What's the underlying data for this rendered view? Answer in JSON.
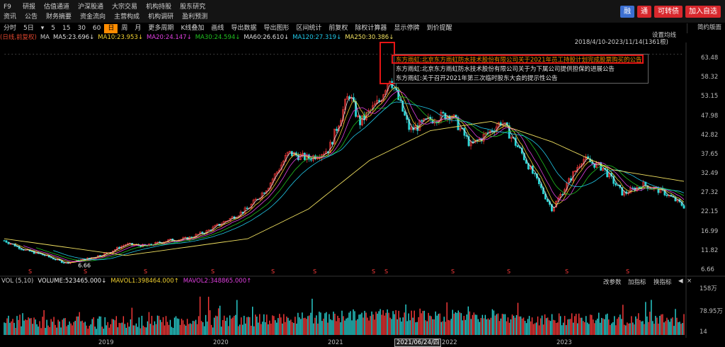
{
  "topbar": {
    "row1": [
      "F9",
      "研报",
      "估值通道",
      "沪深股通",
      "大宗交易",
      "机构持股",
      "股东研究"
    ],
    "row2": [
      "资讯",
      "公告",
      "财务摘要",
      "资金流向",
      "主营构成",
      "机构调研",
      "盈利预测"
    ],
    "buttons": [
      {
        "label": "融",
        "color": "#3c6fd1"
      },
      {
        "label": "通",
        "color": "#d8282d"
      },
      {
        "label": "可转债",
        "color": "#d8282d"
      },
      {
        "label": "加入自选",
        "color": "#d8282d"
      }
    ]
  },
  "toolbar": {
    "items": [
      "分时",
      "5日",
      "▾",
      "5",
      "15",
      "30",
      "60",
      "日",
      "周",
      "月",
      "更多周期",
      "K线叠加",
      "画线",
      "导出数据",
      "导出图形",
      "区间统计",
      "前复权",
      "除权计算器",
      "显示停牌",
      "到价提醒"
    ],
    "active": "日",
    "right_panel": "简约版面"
  },
  "ma_legend": [
    {
      "text": "(日线,前复权)",
      "color": "#e0462e"
    },
    {
      "text": "MA",
      "color": "#cccccc"
    },
    {
      "text": "MA5:23.696↓",
      "color": "#dedede"
    },
    {
      "text": "MA10:23.953↓",
      "color": "#f0d030"
    },
    {
      "text": "MA20:24.147↓",
      "color": "#e040e0"
    },
    {
      "text": "MA30:24.594↓",
      "color": "#20c020"
    },
    {
      "text": "MA60:26.610↓",
      "color": "#dedede"
    },
    {
      "text": "MA120:27.319↓",
      "color": "#20c8e8"
    },
    {
      "text": "MA250:30.386↓",
      "color": "#f0e060"
    }
  ],
  "range_text": "2018/4/10-2023/11/14(1361根)",
  "settings_text": "设置均线",
  "notices": [
    {
      "text": "东方雨虹:北京东方雨虹防水技术股份有限公司关于2021年员工持股计划完成股票购买的公告",
      "color": "#f08a00"
    },
    {
      "text": "东方雨虹:北京东方雨虹防水技术股份有限公司关于为下属公司提供担保的进展公告",
      "color": "#e0e0e0"
    },
    {
      "text": "东方雨虹:关于召开2021年第三次临时股东大会的提示性公告",
      "color": "#e0e0e0"
    }
  ],
  "min_label": "6.66",
  "volume_header": [
    {
      "text": "VOL (5,10)",
      "color": "#cccccc"
    },
    {
      "text": "VOLUME:523465.000↓",
      "color": "#eeeeee"
    },
    {
      "text": "MAVOL1:398464.000↑",
      "color": "#f0d030"
    },
    {
      "text": "MAVOL2:348865.000↑",
      "color": "#e040e0"
    }
  ],
  "volume_controls": [
    "改参数",
    "加指标",
    "换指标",
    "◀",
    "×"
  ],
  "x_labels": [
    {
      "text": "2019",
      "pos": 0.144
    },
    {
      "text": "2020",
      "pos": 0.311
    },
    {
      "text": "2021",
      "pos": 0.478
    },
    {
      "text": "2022",
      "pos": 0.645
    },
    {
      "text": "2023",
      "pos": 0.812
    }
  ],
  "cursor_date": "2021/06/24/四",
  "chart_data": {
    "type": "candlestick",
    "title": "",
    "x_range": [
      "2018/4/10",
      "2023/11/14"
    ],
    "bar_count": 1361,
    "y_axis_ticks": [
      63.48,
      58.32,
      53.15,
      47.98,
      42.82,
      37.65,
      32.49,
      27.32,
      22.15,
      16.99,
      11.82,
      6.66
    ],
    "ylim": [
      6.66,
      63.48
    ],
    "volume_axis_ticks": [
      "158万",
      "78.95万",
      "14"
    ],
    "close_path": [
      [
        "2018-04",
        14.5
      ],
      [
        "2018-06",
        12.0
      ],
      [
        "2018-08",
        10.5
      ],
      [
        "2018-10",
        8.5
      ],
      [
        "2018-12",
        9.5
      ],
      [
        "2019-02",
        11.0
      ],
      [
        "2019-04",
        13.5
      ],
      [
        "2019-06",
        13.0
      ],
      [
        "2019-08",
        14.5
      ],
      [
        "2019-10",
        15.0
      ],
      [
        "2019-12",
        17.0
      ],
      [
        "2020-02",
        20.0
      ],
      [
        "2020-04",
        23.0
      ],
      [
        "2020-06",
        29.0
      ],
      [
        "2020-08",
        38.0
      ],
      [
        "2020-10",
        36.5
      ],
      [
        "2020-12",
        39.0
      ],
      [
        "2021-02",
        54.0
      ],
      [
        "2021-03",
        46.0
      ],
      [
        "2021-05",
        52.0
      ],
      [
        "2021-06",
        58.5
      ],
      [
        "2021-08",
        44.0
      ],
      [
        "2021-10",
        47.0
      ],
      [
        "2021-12",
        48.5
      ],
      [
        "2022-02",
        40.0
      ],
      [
        "2022-04",
        44.0
      ],
      [
        "2022-05",
        46.5
      ],
      [
        "2022-07",
        38.0
      ],
      [
        "2022-09",
        28.0
      ],
      [
        "2022-10",
        23.0
      ],
      [
        "2023-01",
        36.5
      ],
      [
        "2023-03",
        34.0
      ],
      [
        "2023-05",
        27.0
      ],
      [
        "2023-07",
        29.5
      ],
      [
        "2023-09",
        27.5
      ],
      [
        "2023-11",
        23.7
      ]
    ],
    "ma250_path": [
      [
        "2018-04",
        15.0
      ],
      [
        "2019-04",
        10.5
      ],
      [
        "2020-04",
        15.0
      ],
      [
        "2020-10",
        23.0
      ],
      [
        "2021-04",
        36.0
      ],
      [
        "2021-10",
        44.0
      ],
      [
        "2022-04",
        46.5
      ],
      [
        "2022-10",
        41.0
      ],
      [
        "2023-04",
        33.5
      ],
      [
        "2023-11",
        30.4
      ]
    ]
  }
}
